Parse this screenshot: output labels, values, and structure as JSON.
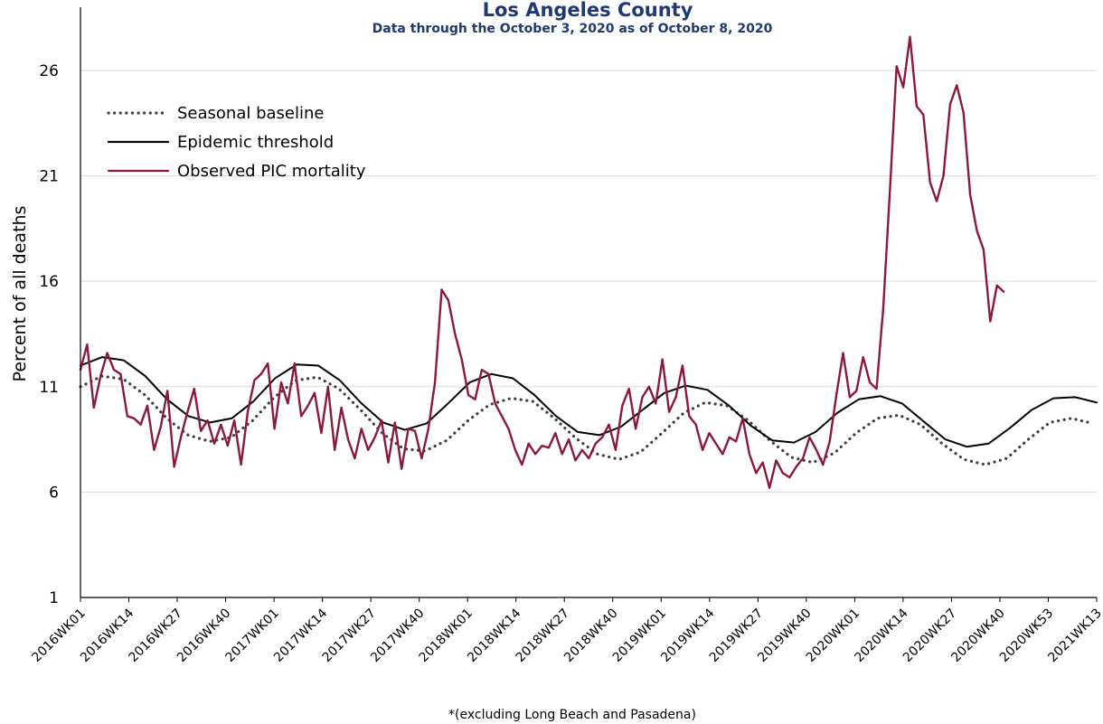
{
  "chart_data": {
    "type": "line",
    "title": "Los Angeles County",
    "subtitle": "Data through the October 3, 2020 as of October 8, 2020",
    "ylabel": "Percent of all deaths",
    "xlabel": "",
    "footnote": "*(excluding Long Beach and Pasadena)",
    "ylim": [
      1,
      29
    ],
    "y_ticks": [
      1,
      6,
      11,
      16,
      21,
      26
    ],
    "x_ticks": [
      "2016WK01",
      "2016WK14",
      "2016WK27",
      "2016WK40",
      "2017WK01",
      "2017WK14",
      "2017WK27",
      "2017WK40",
      "2018WK01",
      "2018WK14",
      "2018WK27",
      "2018WK40",
      "2019WK01",
      "2019WK14",
      "2019WK27",
      "2019WK40",
      "2020WK01",
      "2020WK14",
      "2020WK27",
      "2020WK40",
      "2020WK53",
      "2021WK13"
    ],
    "grid": "horizontal",
    "legend_position": "top-left",
    "series": [
      {
        "name": "Seasonal baseline",
        "style": "dotted",
        "color": "#404040",
        "values": [
          11.0,
          11.5,
          11.35,
          10.6,
          9.5,
          8.7,
          8.4,
          8.6,
          9.4,
          10.5,
          11.3,
          11.45,
          10.9,
          9.9,
          8.8,
          8.05,
          7.95,
          8.45,
          9.4,
          10.15,
          10.45,
          10.3,
          9.5,
          8.55,
          7.8,
          7.55,
          7.9,
          8.8,
          9.75,
          10.25,
          10.1,
          9.4,
          8.45,
          7.65,
          7.4,
          7.85,
          8.8,
          9.5,
          9.65,
          9.2,
          8.3,
          7.55,
          7.3,
          7.6,
          8.5,
          9.3,
          9.5,
          9.25
        ]
      },
      {
        "name": "Epidemic threshold",
        "style": "solid",
        "color": "#000000",
        "values": [
          12.0,
          12.4,
          12.25,
          11.5,
          10.4,
          9.6,
          9.3,
          9.5,
          10.3,
          11.4,
          12.05,
          12.0,
          11.3,
          10.2,
          9.3,
          8.95,
          9.25,
          10.2,
          11.2,
          11.6,
          11.4,
          10.6,
          9.6,
          8.85,
          8.7,
          9.1,
          9.9,
          10.7,
          11.05,
          10.85,
          10.1,
          9.15,
          8.45,
          8.35,
          8.85,
          9.75,
          10.4,
          10.55,
          10.2,
          9.35,
          8.5,
          8.15,
          8.3,
          9.05,
          9.9,
          10.45,
          10.5,
          10.25
        ]
      },
      {
        "name": "Observed PIC mortality",
        "style": "solid",
        "color": "#8b1a3a",
        "values": [
          11.8,
          13.0,
          10.0,
          11.5,
          12.6,
          11.8,
          11.6,
          9.6,
          9.5,
          9.2,
          10.1,
          8.0,
          9.1,
          10.8,
          7.2,
          8.6,
          9.8,
          10.9,
          8.9,
          9.4,
          8.3,
          9.2,
          8.2,
          9.4,
          7.3,
          9.8,
          11.3,
          11.6,
          12.1,
          9.0,
          11.2,
          10.2,
          12.1,
          9.6,
          10.1,
          10.7,
          8.8,
          11.0,
          8.0,
          10.0,
          8.5,
          7.6,
          9.0,
          8.0,
          8.6,
          9.4,
          7.4,
          9.3,
          7.1,
          9.0,
          8.9,
          7.6,
          9.0,
          11.2,
          15.6,
          15.1,
          13.5,
          12.3,
          10.6,
          10.4,
          11.8,
          11.6,
          10.2,
          9.6,
          9.0,
          8.0,
          7.3,
          8.3,
          7.8,
          8.2,
          8.1,
          8.8,
          7.8,
          8.5,
          7.5,
          8.0,
          7.6,
          8.3,
          8.6,
          9.2,
          8.0,
          10.1,
          10.9,
          9.0,
          10.5,
          11.0,
          10.2,
          12.3,
          9.8,
          10.5,
          12.0,
          9.6,
          9.2,
          8.0,
          8.8,
          8.3,
          7.8,
          8.6,
          8.4,
          9.5,
          7.8,
          6.9,
          7.4,
          6.2,
          7.5,
          6.9,
          6.7,
          7.2,
          7.6,
          8.6,
          8.0,
          7.3,
          8.4,
          10.6,
          12.6,
          10.5,
          10.8,
          12.4,
          11.2,
          10.9,
          14.7,
          20.3,
          26.2,
          25.2,
          27.6,
          24.3,
          23.9,
          20.7,
          19.8,
          21.0,
          24.4,
          25.3,
          24.0,
          20.1,
          18.4,
          17.5,
          14.1,
          15.8,
          15.5
        ]
      }
    ]
  }
}
